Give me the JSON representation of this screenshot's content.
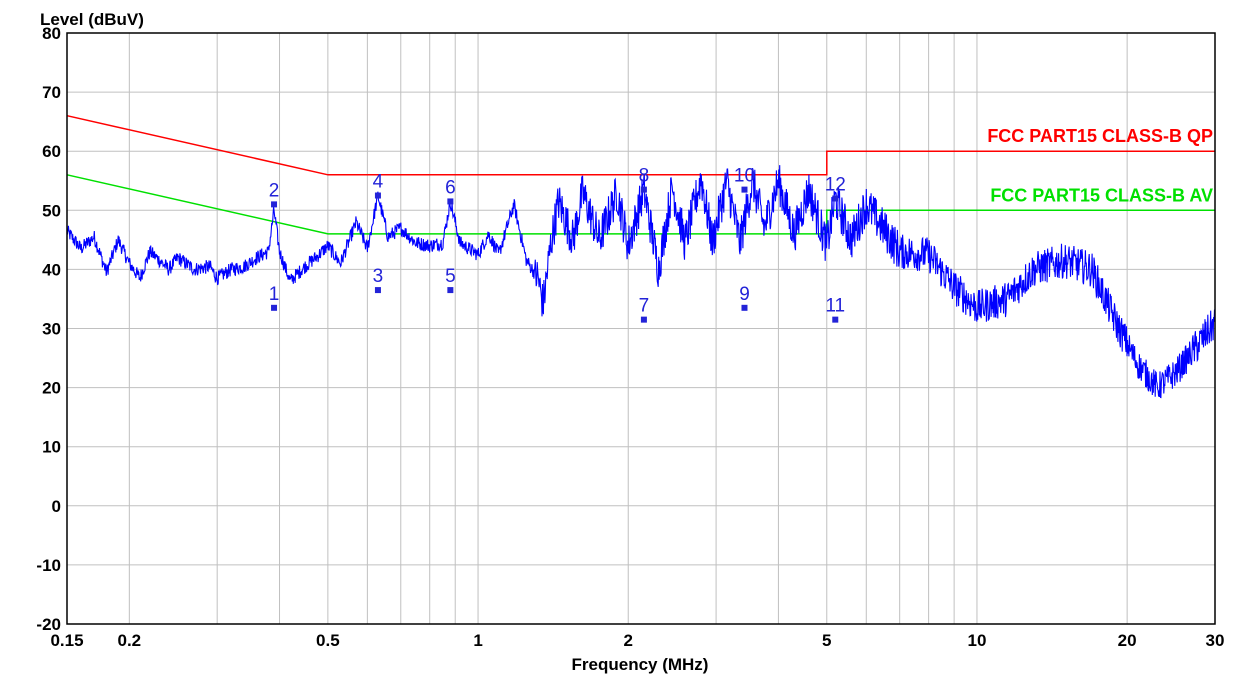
{
  "chart_data": {
    "type": "line",
    "title": "",
    "ylabel": "Level (dBuV)",
    "xlabel": "Frequency (MHz)",
    "x_scale": "log",
    "xlim": [
      0.15,
      30
    ],
    "ylim": [
      -20,
      80
    ],
    "grid": true,
    "y_ticks": [
      "80",
      "70",
      "60",
      "50",
      "40",
      "30",
      "20",
      "10",
      "0",
      "-10",
      "-20"
    ],
    "x_ticks": [
      {
        "value": 0.15,
        "label": "0.15"
      },
      {
        "value": 0.2,
        "label": "0.2"
      },
      {
        "value": 0.5,
        "label": "0.5"
      },
      {
        "value": 1,
        "label": "1"
      },
      {
        "value": 2,
        "label": "2"
      },
      {
        "value": 5,
        "label": "5"
      },
      {
        "value": 10,
        "label": "10"
      },
      {
        "value": 20,
        "label": "20"
      },
      {
        "value": 30,
        "label": "30"
      }
    ],
    "limits": [
      {
        "name": "FCC PART15 CLASS-B QP",
        "color": "#ff0000",
        "points": [
          [
            0.15,
            66
          ],
          [
            0.5,
            56
          ],
          [
            5,
            56
          ],
          [
            5,
            60
          ],
          [
            30,
            60
          ]
        ]
      },
      {
        "name": "FCC PART15 CLASS-B AV",
        "color": "#00e000",
        "points": [
          [
            0.15,
            56
          ],
          [
            0.5,
            46
          ],
          [
            5,
            46
          ],
          [
            5,
            50
          ],
          [
            30,
            50
          ]
        ]
      }
    ],
    "trace": {
      "color": "#0000ff",
      "points": [
        [
          0.15,
          46.5
        ],
        [
          0.16,
          43.5
        ],
        [
          0.17,
          45.5
        ],
        [
          0.18,
          39.5
        ],
        [
          0.19,
          45
        ],
        [
          0.2,
          41
        ],
        [
          0.21,
          38.5
        ],
        [
          0.22,
          43
        ],
        [
          0.23,
          41.5
        ],
        [
          0.24,
          40
        ],
        [
          0.25,
          42
        ],
        [
          0.27,
          40
        ],
        [
          0.29,
          40.5
        ],
        [
          0.3,
          38.5
        ],
        [
          0.32,
          40
        ],
        [
          0.34,
          40.5
        ],
        [
          0.36,
          42
        ],
        [
          0.38,
          43
        ],
        [
          0.39,
          50
        ],
        [
          0.4,
          43
        ],
        [
          0.42,
          38
        ],
        [
          0.45,
          40.5
        ],
        [
          0.48,
          42.5
        ],
        [
          0.5,
          44
        ],
        [
          0.53,
          41
        ],
        [
          0.57,
          48
        ],
        [
          0.6,
          43.5
        ],
        [
          0.63,
          52.5
        ],
        [
          0.66,
          45.5
        ],
        [
          0.7,
          47
        ],
        [
          0.75,
          44.5
        ],
        [
          0.8,
          44
        ],
        [
          0.85,
          44.5
        ],
        [
          0.88,
          51.5
        ],
        [
          0.92,
          44.5
        ],
        [
          1.0,
          42.5
        ],
        [
          1.05,
          46
        ],
        [
          1.1,
          42.5
        ],
        [
          1.18,
          51
        ],
        [
          1.25,
          41.5
        ],
        [
          1.32,
          38.5
        ],
        [
          1.35,
          34
        ],
        [
          1.4,
          44.5
        ],
        [
          1.45,
          51.5
        ],
        [
          1.55,
          45
        ],
        [
          1.62,
          53
        ],
        [
          1.75,
          45
        ],
        [
          1.9,
          53
        ],
        [
          2.0,
          44
        ],
        [
          2.15,
          53.5
        ],
        [
          2.3,
          40
        ],
        [
          2.45,
          54
        ],
        [
          2.6,
          44.5
        ],
        [
          2.8,
          55.5
        ],
        [
          2.95,
          44.5
        ],
        [
          3.15,
          55
        ],
        [
          3.35,
          44.5
        ],
        [
          3.55,
          55
        ],
        [
          3.75,
          47
        ],
        [
          4.0,
          55
        ],
        [
          4.3,
          46
        ],
        [
          4.6,
          53.5
        ],
        [
          5.0,
          44
        ],
        [
          5.2,
          52
        ],
        [
          5.6,
          45
        ],
        [
          6.0,
          51
        ],
        [
          7.0,
          43
        ],
        [
          8.0,
          42.5
        ],
        [
          9.0,
          37
        ],
        [
          10.0,
          33.5
        ],
        [
          11.5,
          35
        ],
        [
          13.0,
          40
        ],
        [
          15.0,
          41.5
        ],
        [
          17.0,
          40
        ],
        [
          19.0,
          31
        ],
        [
          21.0,
          24
        ],
        [
          23.0,
          20
        ],
        [
          25.0,
          22.5
        ],
        [
          27.0,
          26
        ],
        [
          30.0,
          31
        ]
      ]
    },
    "markers": [
      {
        "label": "1",
        "freq": 0.39,
        "level": 33.5
      },
      {
        "label": "2",
        "freq": 0.39,
        "level": 51
      },
      {
        "label": "3",
        "freq": 0.63,
        "level": 36.5
      },
      {
        "label": "4",
        "freq": 0.63,
        "level": 52.5
      },
      {
        "label": "5",
        "freq": 0.88,
        "level": 36.5
      },
      {
        "label": "6",
        "freq": 0.88,
        "level": 51.5
      },
      {
        "label": "7",
        "freq": 2.15,
        "level": 31.5
      },
      {
        "label": "8",
        "freq": 2.15,
        "level": 53.5
      },
      {
        "label": "9",
        "freq": 3.42,
        "level": 33.5
      },
      {
        "label": "10",
        "freq": 3.42,
        "level": 53.5
      },
      {
        "label": "11",
        "freq": 5.2,
        "level": 31.5
      },
      {
        "label": "12",
        "freq": 5.2,
        "level": 52
      }
    ]
  }
}
